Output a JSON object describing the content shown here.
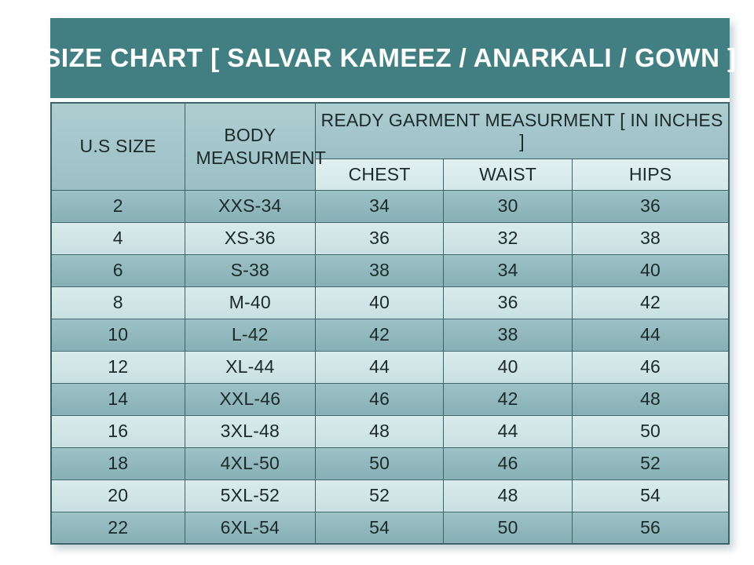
{
  "chart_data": {
    "type": "table",
    "title": "SIZE CHART [ SALVAR KAMEEZ / ANARKALI / GOWN ]",
    "header": {
      "us_size": "U.S SIZE",
      "body_measurement": "BODY MEASURMENT",
      "garment_group": "READY GARMENT MEASURMENT [ IN INCHES ]",
      "sub_columns": [
        "CHEST",
        "WAIST",
        "HIPS"
      ]
    },
    "rows": [
      [
        "2",
        "XXS-34",
        "34",
        "30",
        "36"
      ],
      [
        "4",
        "XS-36",
        "36",
        "32",
        "38"
      ],
      [
        "6",
        "S-38",
        "38",
        "34",
        "40"
      ],
      [
        "8",
        "M-40",
        "40",
        "36",
        "42"
      ],
      [
        "10",
        "L-42",
        "42",
        "38",
        "44"
      ],
      [
        "12",
        "XL-44",
        "44",
        "40",
        "46"
      ],
      [
        "14",
        "XXL-46",
        "46",
        "42",
        "48"
      ],
      [
        "16",
        "3XL-48",
        "48",
        "44",
        "50"
      ],
      [
        "18",
        "4XL-50",
        "50",
        "46",
        "52"
      ],
      [
        "20",
        "5XL-52",
        "52",
        "48",
        "54"
      ],
      [
        "22",
        "6XL-54",
        "54",
        "50",
        "56"
      ]
    ]
  },
  "colors": {
    "title_bar_bg": "#417f82",
    "title_text": "#ffffff",
    "header_cell_bg": "#a4c7cb",
    "subheader_cell_bg": "#dcecee",
    "row_dark_bg": "#92babe",
    "row_light_bg": "#d2e6e8",
    "grid_border": "#3c6468",
    "cell_text": "#1c2a2a",
    "page_bg": "#ffffff"
  }
}
